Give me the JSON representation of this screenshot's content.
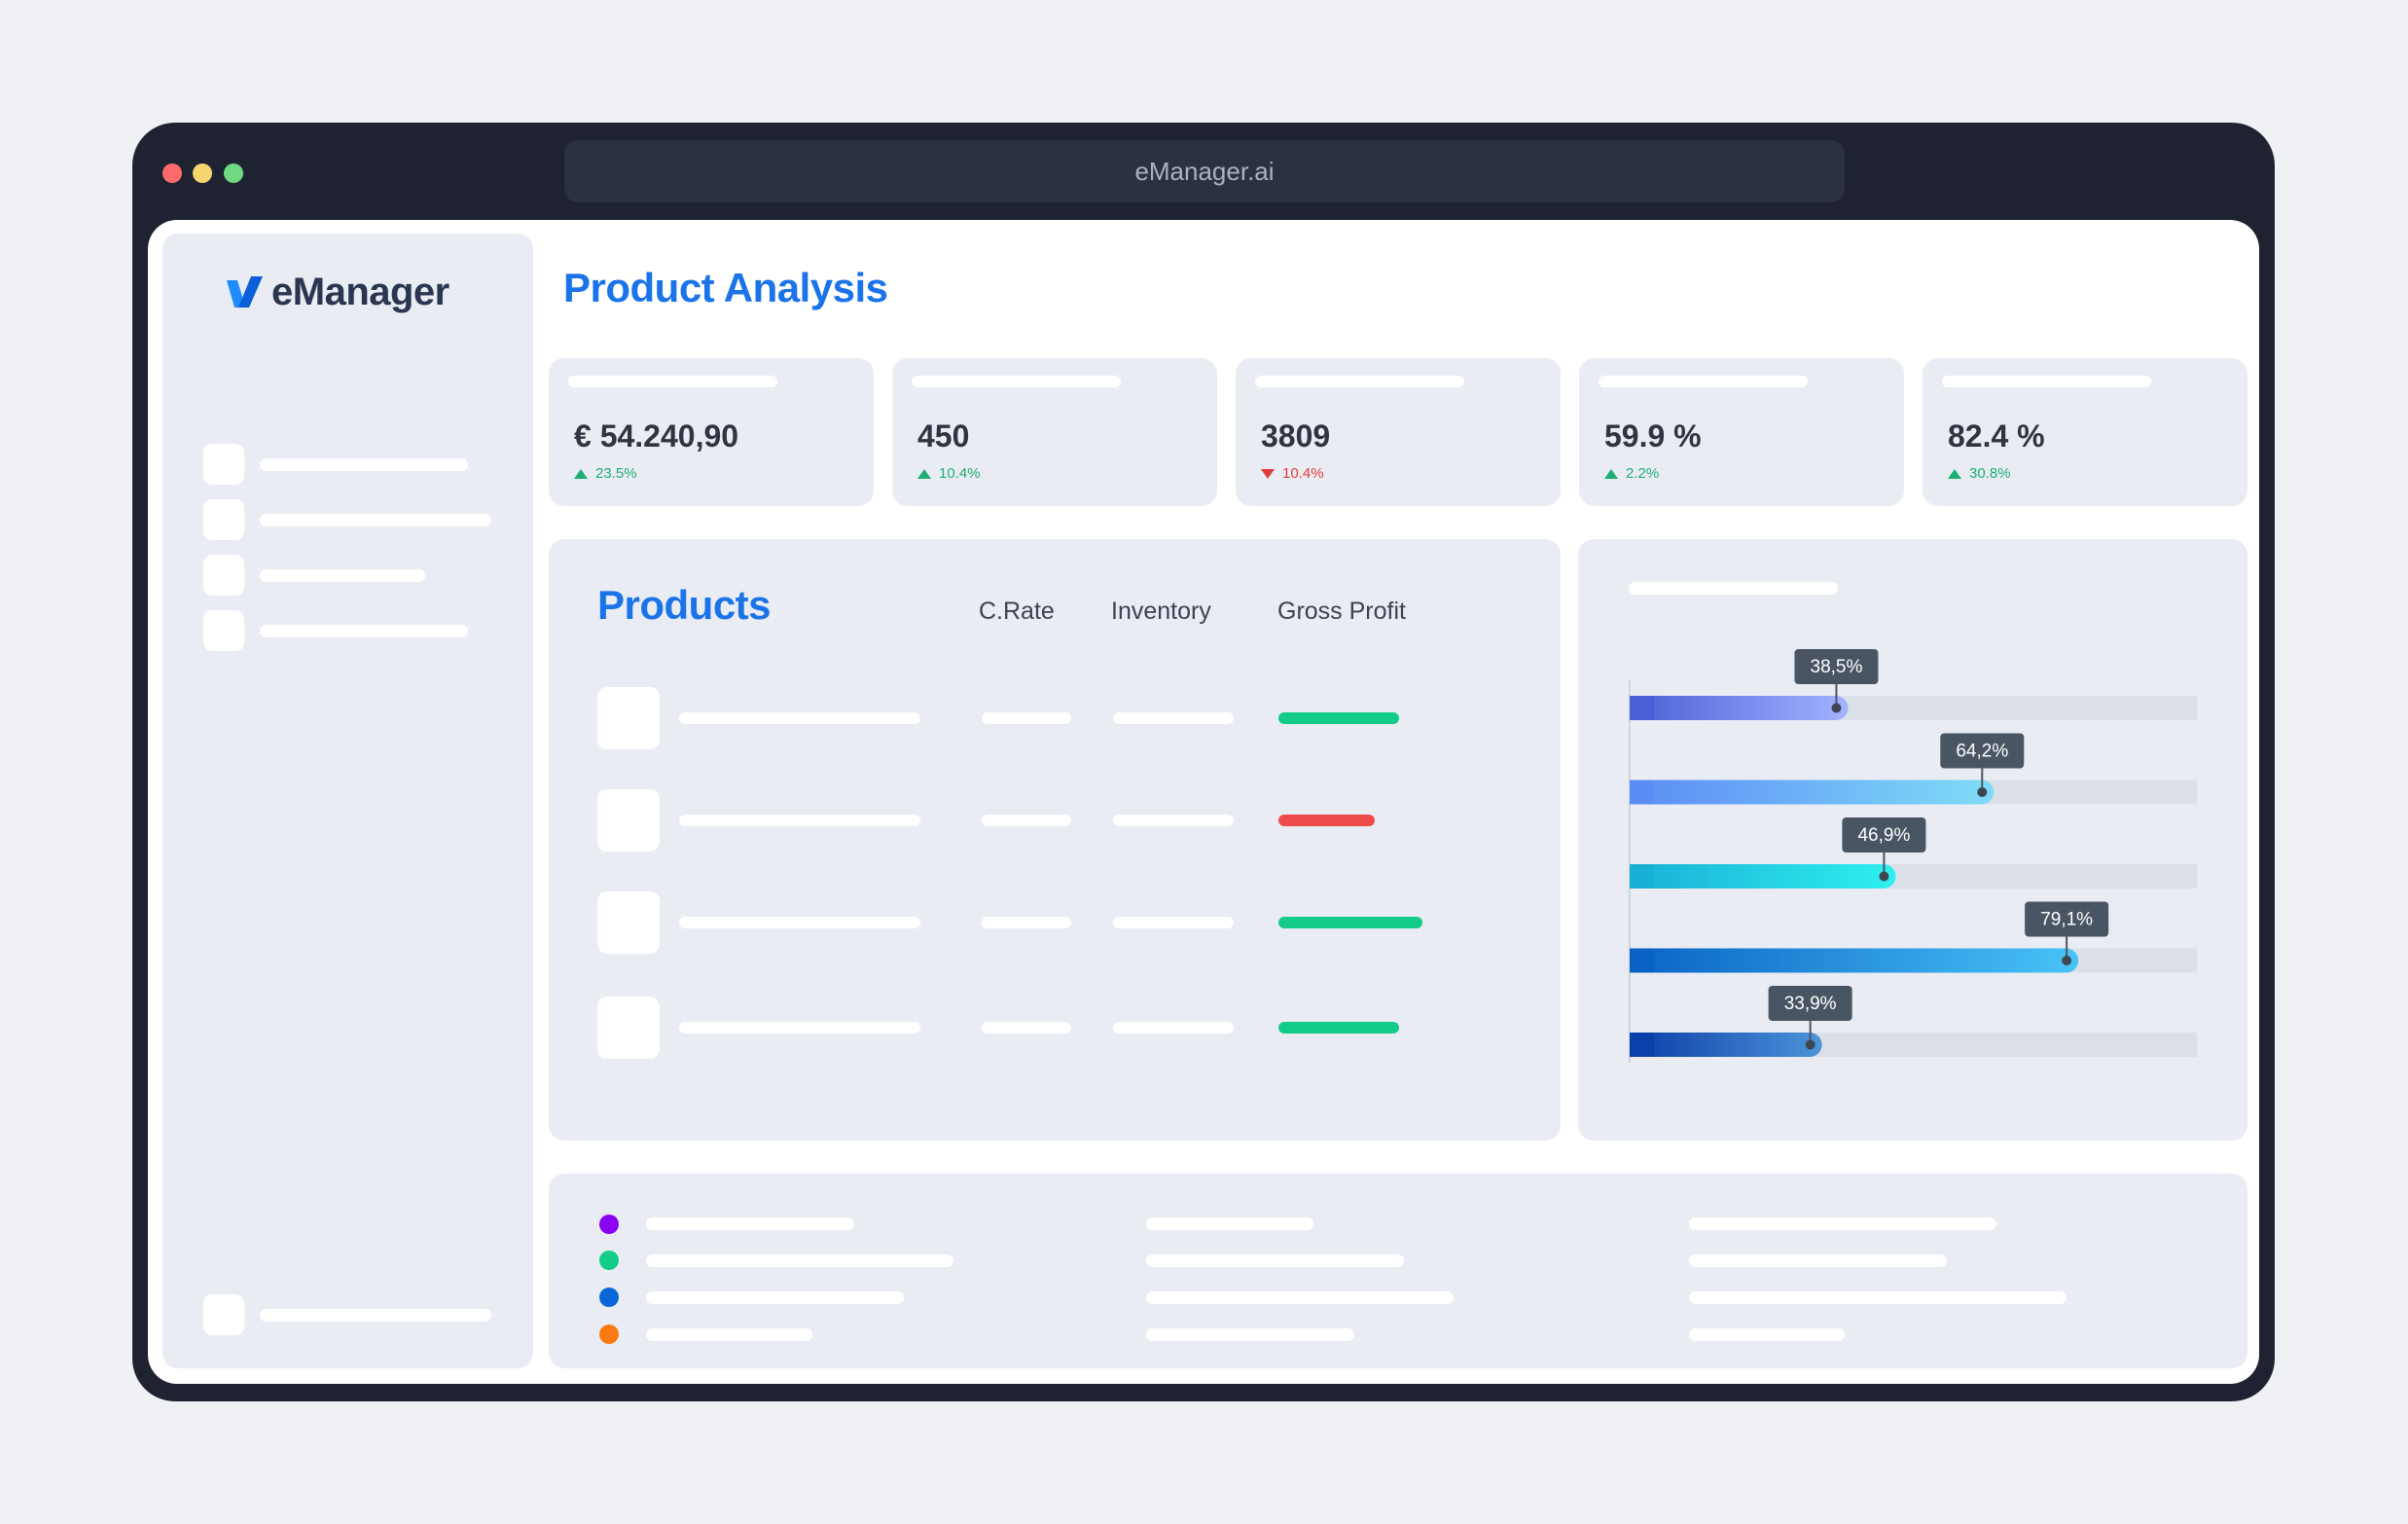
{
  "window": {
    "url": "eManager.ai"
  },
  "sidebar": {
    "logo_text": "eManager"
  },
  "header": {
    "title": "Product Analysis"
  },
  "stats": [
    {
      "value": "€ 54.240,90",
      "delta": "23.5%",
      "direction": "up"
    },
    {
      "value": "450",
      "delta": "10.4%",
      "direction": "up"
    },
    {
      "value": "3809",
      "delta": "10.4%",
      "direction": "down"
    },
    {
      "value": "59.9 %",
      "delta": "2.2%",
      "direction": "up"
    },
    {
      "value": "82.4 %",
      "delta": "30.8%",
      "direction": "up"
    }
  ],
  "products": {
    "title": "Products",
    "columns": [
      "C.Rate",
      "Inventory",
      "Gross Profit"
    ],
    "gross_profit_status": [
      {
        "status": "positive",
        "color": "#14cc8a"
      },
      {
        "status": "negative",
        "color": "#ee4b4b"
      },
      {
        "status": "positive",
        "color": "#14cc8a"
      },
      {
        "status": "positive",
        "color": "#14cc8a"
      }
    ]
  },
  "chart_data": {
    "type": "bar",
    "orientation": "horizontal",
    "xlim": [
      0,
      100
    ],
    "values": [
      38.5,
      64.2,
      46.9,
      79.1,
      33.9
    ],
    "labels": [
      "38,5%",
      "64,2%",
      "46,9%",
      "79,1%",
      "33,9%"
    ],
    "colors": [
      [
        "#4a5fd6",
        "#a3b3ff"
      ],
      [
        "#5b8cf5",
        "#7fdcf7"
      ],
      [
        "#19b0d6",
        "#2ef0ef"
      ],
      [
        "#0a63c4",
        "#48c3f6"
      ],
      [
        "#0a3ea8",
        "#4c94d9"
      ]
    ],
    "track_color": "#dadfe8",
    "tooltip_color": "#4a5563"
  },
  "legend": {
    "colors": [
      "#8a00f0",
      "#14cc8a",
      "#0a66d6",
      "#fb7a12"
    ]
  }
}
